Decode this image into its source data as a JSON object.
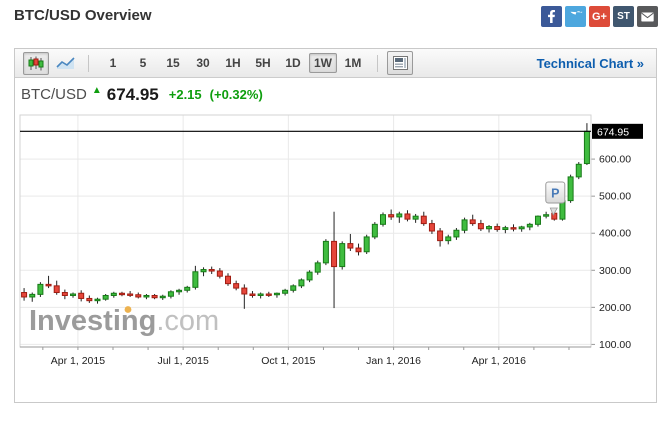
{
  "header": {
    "title": "BTC/USD Overview",
    "social_icons": [
      {
        "name": "facebook-icon",
        "bg": "#3b5998"
      },
      {
        "name": "twitter-icon",
        "bg": "#4da7de"
      },
      {
        "name": "googleplus-icon",
        "bg": "#dd4b39",
        "label": "G+"
      },
      {
        "name": "stocktwits-icon",
        "bg": "#40576f",
        "label": "ST"
      },
      {
        "name": "email-icon",
        "bg": "#58595b"
      }
    ]
  },
  "toolbar": {
    "chart_type_buttons": [
      {
        "name": "candlestick-chart-button",
        "active": true
      },
      {
        "name": "line-chart-button",
        "active": false
      }
    ],
    "timeframes": [
      "1",
      "5",
      "15",
      "30",
      "1H",
      "5H",
      "1D",
      "1W",
      "1M"
    ],
    "active_timeframe": "1W",
    "technical_chart_link": "Technical Chart »"
  },
  "quote": {
    "symbol": "BTC/USD",
    "arrow": "▲",
    "last": "674.95",
    "change": "+2.15",
    "change_pct": "(+0.32%)"
  },
  "chart_data": {
    "type": "candlestick",
    "title": "BTC/USD weekly candlestick chart",
    "timeframe": "1W",
    "x_tick_labels": [
      "Apr 1, 2015",
      "Jul 1, 2015",
      "Oct 1, 2015",
      "Jan 1, 2016",
      "Apr 1, 2016"
    ],
    "x_tick_indices": [
      7.1,
      20.0,
      32.9,
      45.8,
      58.7
    ],
    "minor_ticks_per_label": 3,
    "y_ticks": [
      600,
      500,
      400,
      300,
      200,
      100
    ],
    "y_tick_labels": [
      "600.00",
      "500.00",
      "400.00",
      "300.00",
      "200.00",
      "100.00"
    ],
    "ylim": [
      93,
      719
    ],
    "last_price": 674.95,
    "last_price_label": "674.95",
    "marker": {
      "label": "P",
      "candle_index": 65
    },
    "watermark": {
      "text": "Investing",
      "suffix": ".com"
    },
    "colors": {
      "up_fill": "#3fbc3f",
      "up_stroke": "#177a17",
      "down_fill": "#e5463b",
      "down_stroke": "#a01c11",
      "wick": "#222222",
      "grid": "#e9e9e9",
      "plot_border": "#d3d3d3",
      "axis_text": "#222222",
      "last_price_line": "#000000",
      "badge_bg": "#000000",
      "badge_text": "#ffffff",
      "marker_text": "#4a7bb8",
      "watermark_gray": "#9b9b9b",
      "watermark_light": "#c0c0c0",
      "watermark_dot": "#edb24f"
    },
    "candles": [
      [
        240,
        252,
        218,
        228
      ],
      [
        228,
        240,
        215,
        235
      ],
      [
        235,
        268,
        228,
        262
      ],
      [
        262,
        285,
        252,
        258
      ],
      [
        258,
        272,
        234,
        240
      ],
      [
        240,
        248,
        222,
        232
      ],
      [
        232,
        240,
        226,
        236
      ],
      [
        238,
        246,
        216,
        224
      ],
      [
        224,
        232,
        212,
        218
      ],
      [
        218,
        226,
        210,
        222
      ],
      [
        222,
        236,
        218,
        232
      ],
      [
        232,
        242,
        226,
        238
      ],
      [
        238,
        242,
        230,
        236
      ],
      [
        236,
        244,
        228,
        234
      ],
      [
        234,
        240,
        224,
        228
      ],
      [
        228,
        236,
        222,
        232
      ],
      [
        232,
        236,
        222,
        226
      ],
      [
        226,
        234,
        220,
        230
      ],
      [
        230,
        246,
        224,
        242
      ],
      [
        242,
        250,
        234,
        246
      ],
      [
        246,
        258,
        240,
        254
      ],
      [
        254,
        312,
        248,
        296
      ],
      [
        296,
        308,
        284,
        302
      ],
      [
        302,
        310,
        290,
        298
      ],
      [
        298,
        306,
        278,
        284
      ],
      [
        284,
        292,
        258,
        264
      ],
      [
        264,
        272,
        246,
        252
      ],
      [
        252,
        262,
        196,
        236
      ],
      [
        236,
        244,
        226,
        232
      ],
      [
        232,
        240,
        224,
        236
      ],
      [
        236,
        242,
        228,
        234
      ],
      [
        234,
        240,
        226,
        238
      ],
      [
        238,
        250,
        232,
        246
      ],
      [
        246,
        262,
        240,
        258
      ],
      [
        258,
        278,
        252,
        274
      ],
      [
        274,
        300,
        268,
        295
      ],
      [
        295,
        326,
        288,
        320
      ],
      [
        320,
        384,
        314,
        378
      ],
      [
        378,
        458,
        198,
        310
      ],
      [
        310,
        378,
        302,
        372
      ],
      [
        372,
        398,
        352,
        360
      ],
      [
        360,
        372,
        340,
        350
      ],
      [
        350,
        396,
        344,
        390
      ],
      [
        390,
        430,
        384,
        424
      ],
      [
        424,
        456,
        418,
        450
      ],
      [
        450,
        464,
        436,
        444
      ],
      [
        444,
        458,
        428,
        452
      ],
      [
        452,
        462,
        432,
        438
      ],
      [
        438,
        452,
        428,
        446
      ],
      [
        446,
        458,
        420,
        426
      ],
      [
        426,
        436,
        398,
        406
      ],
      [
        406,
        414,
        364,
        380
      ],
      [
        380,
        396,
        370,
        390
      ],
      [
        390,
        414,
        382,
        408
      ],
      [
        408,
        442,
        400,
        436
      ],
      [
        436,
        450,
        420,
        426
      ],
      [
        426,
        436,
        406,
        412
      ],
      [
        412,
        422,
        402,
        418
      ],
      [
        418,
        426,
        404,
        410
      ],
      [
        410,
        420,
        400,
        415
      ],
      [
        415,
        424,
        405,
        412
      ],
      [
        412,
        420,
        404,
        417
      ],
      [
        417,
        428,
        408,
        424
      ],
      [
        424,
        448,
        418,
        446
      ],
      [
        446,
        458,
        440,
        450
      ],
      [
        454,
        460,
        434,
        438
      ],
      [
        438,
        512,
        434,
        488
      ],
      [
        488,
        558,
        482,
        552
      ],
      [
        552,
        592,
        546,
        586
      ],
      [
        588,
        697,
        584,
        675
      ]
    ]
  }
}
